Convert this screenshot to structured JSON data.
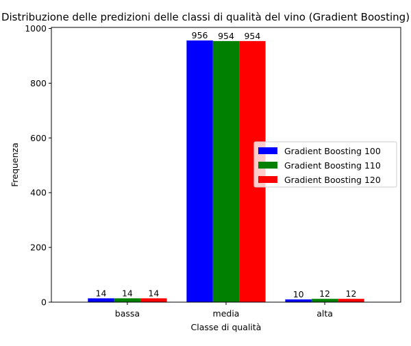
{
  "chart_data": {
    "type": "bar",
    "title": "Distribuzione delle predizioni delle classi di qualità del vino (Gradient Boosting)",
    "xlabel": "Classe di qualità",
    "ylabel": "Frequenza",
    "categories": [
      "bassa",
      "media",
      "alta"
    ],
    "series": [
      {
        "name": "Gradient Boosting 100",
        "values": [
          14,
          956,
          10
        ],
        "color": "#0000ff"
      },
      {
        "name": "Gradient Boosting 110",
        "values": [
          14,
          954,
          12
        ],
        "color": "#008000"
      },
      {
        "name": "Gradient Boosting 120",
        "values": [
          14,
          954,
          12
        ],
        "color": "#ff0000"
      }
    ],
    "ylim": [
      0,
      1003.8
    ],
    "yticks": [
      0,
      200,
      400,
      600,
      800,
      1000
    ],
    "grid": false,
    "legend": "center-right"
  }
}
